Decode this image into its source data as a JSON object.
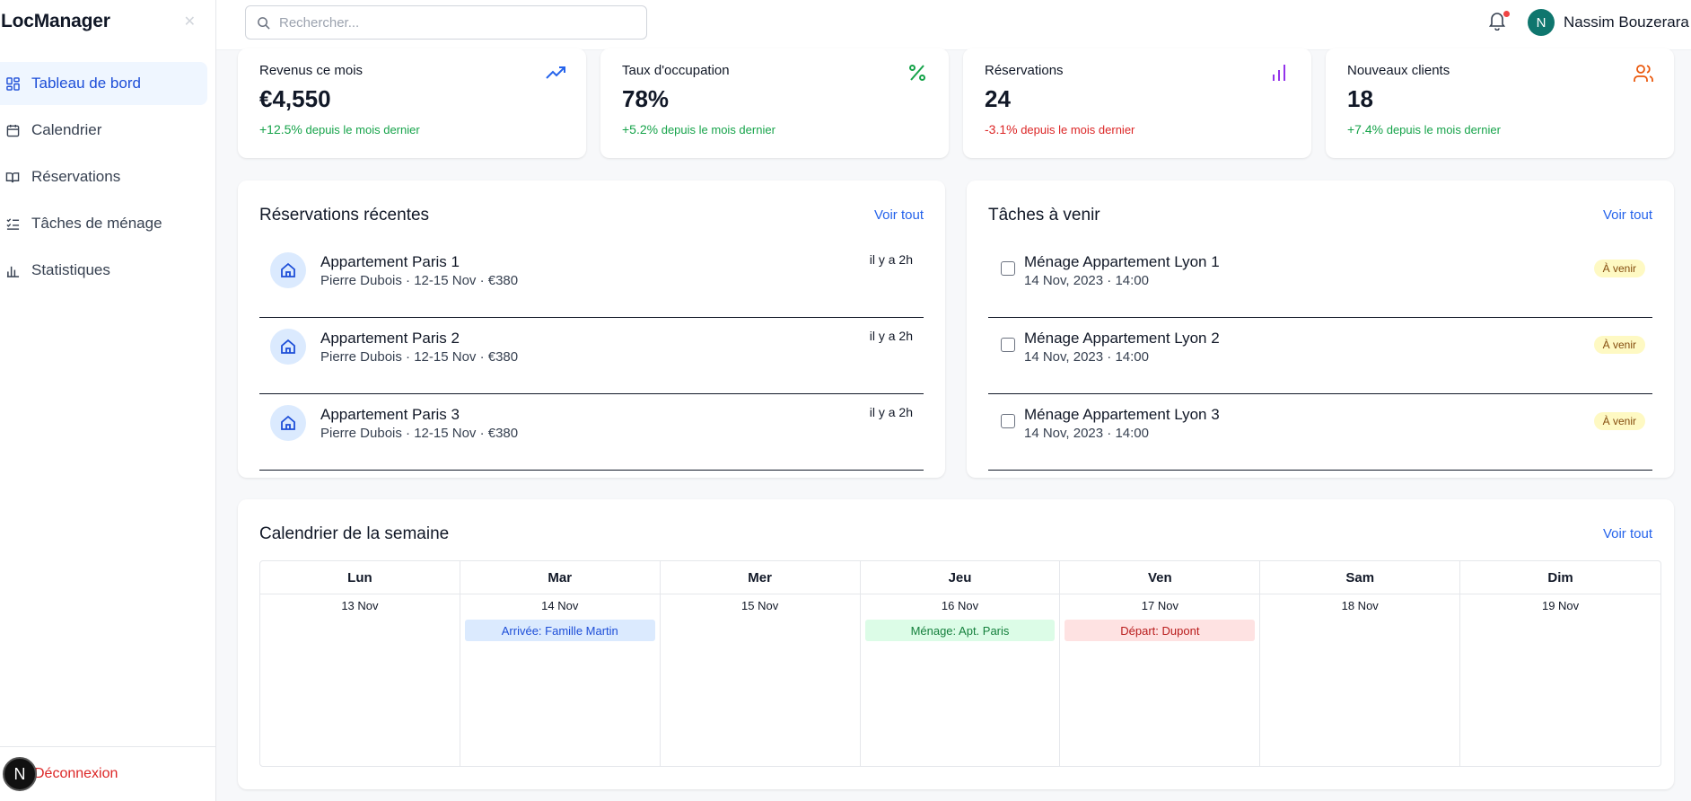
{
  "app": {
    "title": "LocManager"
  },
  "sidebar": {
    "items": [
      {
        "label": "Tableau de bord",
        "icon": "dashboard-icon",
        "active": true
      },
      {
        "label": "Calendrier",
        "icon": "calendar-icon"
      },
      {
        "label": "Réservations",
        "icon": "book-icon"
      },
      {
        "label": "Tâches de ménage",
        "icon": "checklist-icon"
      },
      {
        "label": "Statistiques",
        "icon": "bar-chart-icon"
      }
    ],
    "logout_label": "Déconnexion",
    "badge_letter": "N"
  },
  "header": {
    "search_placeholder": "Rechercher...",
    "user_initial": "N",
    "user_name": "Nassim Bouzerara"
  },
  "stats": [
    {
      "title": "Revenus ce mois",
      "value": "€4,550",
      "delta": "+12.5%",
      "delta_text": "depuis le mois dernier",
      "trend": "up",
      "icon": "trending-up-icon",
      "color": "#2563eb"
    },
    {
      "title": "Taux d'occupation",
      "value": "78%",
      "delta": "+5.2%",
      "delta_text": "depuis le mois dernier",
      "trend": "up",
      "icon": "percent-icon",
      "color": "#16a34a"
    },
    {
      "title": "Réservations",
      "value": "24",
      "delta": "-3.1%",
      "delta_text": "depuis le mois dernier",
      "trend": "down",
      "icon": "bar-chart-icon",
      "color": "#9333ea"
    },
    {
      "title": "Nouveaux clients",
      "value": "18",
      "delta": "+7.4%",
      "delta_text": "depuis le mois dernier",
      "trend": "up",
      "icon": "users-icon",
      "color": "#ea580c"
    }
  ],
  "recent": {
    "title": "Réservations récentes",
    "see_all": "Voir tout",
    "items": [
      {
        "title": "Appartement Paris 1",
        "sub": "Pierre Dubois · 12-15 Nov · €380",
        "time": "il y a 2h"
      },
      {
        "title": "Appartement Paris 2",
        "sub": "Pierre Dubois · 12-15 Nov · €380",
        "time": "il y a 2h"
      },
      {
        "title": "Appartement Paris 3",
        "sub": "Pierre Dubois · 12-15 Nov · €380",
        "time": "il y a 2h"
      }
    ]
  },
  "tasks": {
    "title": "Tâches à venir",
    "see_all": "Voir tout",
    "items": [
      {
        "title": "Ménage Appartement Lyon 1",
        "sub": "14 Nov, 2023 · 14:00",
        "badge": "À venir"
      },
      {
        "title": "Ménage Appartement Lyon 2",
        "sub": "14 Nov, 2023 · 14:00",
        "badge": "À venir"
      },
      {
        "title": "Ménage Appartement Lyon 3",
        "sub": "14 Nov, 2023 · 14:00",
        "badge": "À venir"
      }
    ]
  },
  "calendar": {
    "title": "Calendrier de la semaine",
    "see_all": "Voir tout",
    "days": [
      {
        "day": "Lun",
        "date": "13 Nov",
        "event": null
      },
      {
        "day": "Mar",
        "date": "14 Nov",
        "event": {
          "label": "Arrivée: Famille Martin",
          "type": "blue"
        }
      },
      {
        "day": "Mer",
        "date": "15 Nov",
        "event": null
      },
      {
        "day": "Jeu",
        "date": "16 Nov",
        "event": {
          "label": "Ménage: Apt. Paris",
          "type": "green"
        }
      },
      {
        "day": "Ven",
        "date": "17 Nov",
        "event": {
          "label": "Départ: Dupont",
          "type": "red"
        }
      },
      {
        "day": "Sam",
        "date": "18 Nov",
        "event": null
      },
      {
        "day": "Dim",
        "date": "19 Nov",
        "event": null
      }
    ]
  }
}
